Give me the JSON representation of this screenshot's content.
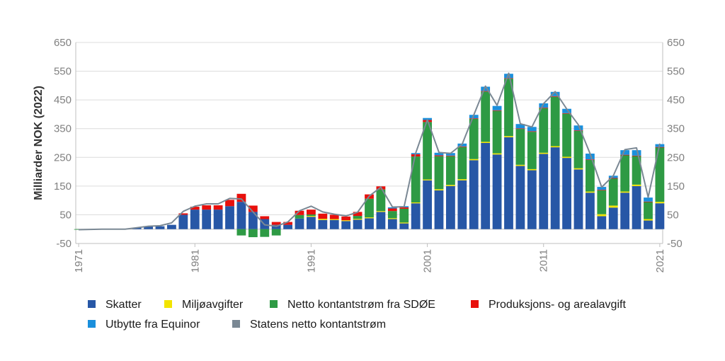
{
  "chart_data": {
    "type": "bar",
    "stacked": true,
    "ylabel": "Milliarder NOK (2022)",
    "ylim": [
      -50,
      650
    ],
    "yticks": [
      -50,
      50,
      150,
      250,
      350,
      450,
      550,
      650
    ],
    "xticks": [
      1971,
      1981,
      1991,
      2001,
      2011,
      2021
    ],
    "ytick_labels": [
      "-50",
      "50",
      "150",
      "250",
      "350",
      "450",
      "550",
      "650"
    ],
    "xtick_labels": [
      "1971",
      "1981",
      "1991",
      "2001",
      "2011",
      "2021"
    ],
    "grid": true,
    "right_axis": true,
    "legend_position": "bottom",
    "years": [
      1971,
      1972,
      1973,
      1974,
      1975,
      1976,
      1977,
      1978,
      1979,
      1980,
      1981,
      1982,
      1983,
      1984,
      1985,
      1986,
      1987,
      1988,
      1989,
      1990,
      1991,
      1992,
      1993,
      1994,
      1995,
      1996,
      1997,
      1998,
      1999,
      2000,
      2001,
      2002,
      2003,
      2004,
      2005,
      2006,
      2007,
      2008,
      2009,
      2010,
      2011,
      2012,
      2013,
      2014,
      2015,
      2016,
      2017,
      2018,
      2019,
      2020,
      2021
    ],
    "series": [
      {
        "name": "Skatter",
        "color": "#2757a6",
        "values": [
          0,
          0,
          0,
          0,
          0,
          5,
          10,
          10,
          15,
          50,
          68,
          68,
          68,
          80,
          95,
          60,
          35,
          15,
          15,
          37,
          43,
          32,
          32,
          28,
          33,
          38,
          60,
          35,
          20,
          90,
          170,
          135,
          150,
          170,
          240,
          300,
          260,
          320,
          220,
          205,
          262,
          285,
          248,
          208,
          127,
          45,
          75,
          127,
          150,
          30,
          90
        ]
      },
      {
        "name": "Miljøavgifter",
        "color": "#f2e400",
        "values": [
          0,
          0,
          0,
          0,
          0,
          0,
          0,
          0,
          0,
          0,
          0,
          0,
          0,
          0,
          0,
          0,
          0,
          0,
          0,
          0,
          3,
          4,
          3,
          3,
          3,
          3,
          3,
          3,
          3,
          3,
          3,
          4,
          4,
          4,
          4,
          4,
          4,
          4,
          4,
          4,
          4,
          4,
          4,
          4,
          4,
          7,
          7,
          4,
          5,
          5,
          5
        ]
      },
      {
        "name": "Netto kontantstrøm fra SDØE",
        "color": "#2e9a44",
        "values": [
          -2,
          -1,
          0,
          0,
          0,
          0,
          0,
          0,
          0,
          0,
          0,
          0,
          0,
          0,
          -22,
          -28,
          -27,
          -22,
          0,
          12,
          5,
          0,
          0,
          0,
          10,
          65,
          75,
          25,
          48,
          160,
          200,
          115,
          100,
          112,
          140,
          175,
          148,
          200,
          125,
          130,
          155,
          172,
          150,
          130,
          110,
          83,
          95,
          127,
          100,
          60,
          190
        ]
      },
      {
        "name": "Produksjons- og arealavgift",
        "color": "#e8100c",
        "values": [
          0,
          0,
          0,
          0,
          0,
          0,
          0,
          0,
          0,
          5,
          10,
          15,
          15,
          22,
          28,
          22,
          10,
          10,
          10,
          15,
          17,
          18,
          15,
          13,
          14,
          15,
          11,
          9,
          5,
          8,
          7,
          3,
          2,
          2,
          2,
          2,
          2,
          2,
          2,
          2,
          2,
          2,
          2,
          2,
          2,
          2,
          1,
          1,
          1,
          1,
          1
        ]
      },
      {
        "name": "Utbytte fra Equinor",
        "color": "#1a8fdc",
        "values": [
          0,
          0,
          0,
          0,
          0,
          0,
          0,
          0,
          0,
          0,
          0,
          0,
          0,
          0,
          0,
          0,
          0,
          0,
          0,
          0,
          0,
          0,
          0,
          0,
          0,
          0,
          0,
          4,
          4,
          4,
          7,
          9,
          9,
          10,
          12,
          15,
          15,
          15,
          15,
          15,
          15,
          15,
          15,
          17,
          20,
          10,
          8,
          16,
          19,
          14,
          10
        ]
      }
    ],
    "line": {
      "name": "Statens netto kontantstrøm",
      "color": "#7a8894",
      "values": [
        -2,
        -1,
        0,
        0,
        0,
        5,
        10,
        12,
        22,
        62,
        80,
        88,
        88,
        107,
        105,
        60,
        15,
        10,
        25,
        64,
        80,
        60,
        52,
        46,
        59,
        115,
        146,
        77,
        78,
        265,
        381,
        267,
        264,
        296,
        398,
        498,
        431,
        543,
        367,
        356,
        437,
        479,
        418,
        363,
        263,
        146,
        186,
        277,
        283,
        111,
        298
      ]
    }
  }
}
